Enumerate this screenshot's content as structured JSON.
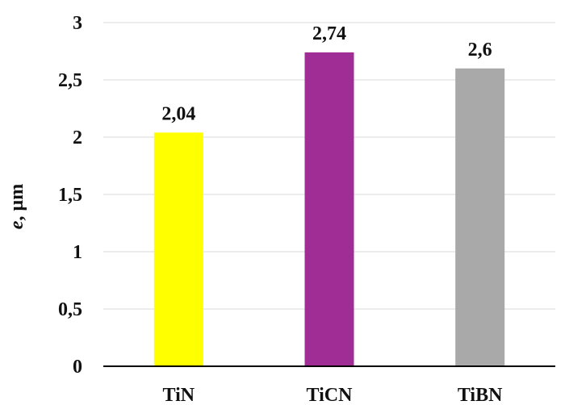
{
  "chart_data": {
    "type": "bar",
    "categories": [
      "TiN",
      "TiCN",
      "TiBN"
    ],
    "values": [
      2.04,
      2.74,
      2.6
    ],
    "data_labels": [
      "2,04",
      "2,74",
      "2,6"
    ],
    "colors": [
      "#ffff00",
      "#a02c96",
      "#a9a9a9"
    ],
    "ylabel_italic": "e",
    "ylabel_rest": ", µm",
    "xlabel": "",
    "ylim": [
      0,
      3
    ],
    "y_ticks": [
      0,
      0.5,
      1,
      1.5,
      2,
      2.5,
      3
    ],
    "y_tick_labels": [
      "0",
      "0,5",
      "1",
      "1,5",
      "2",
      "2,5",
      "3"
    ],
    "grid": true,
    "legend": "none"
  }
}
